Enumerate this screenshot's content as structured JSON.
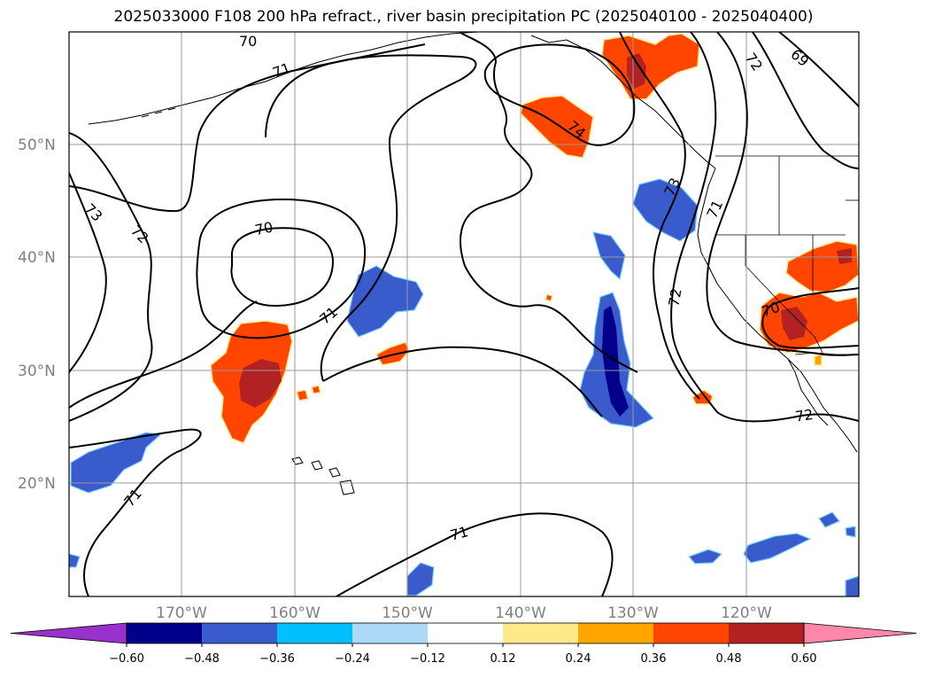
{
  "title": "2025033000 F108 200 hPa refract., river basin precipitation PC (2025040100 - 2025040400)",
  "latitude_labels": [
    "50°N",
    "40°N",
    "30°N",
    "20°N"
  ],
  "longitude_labels": [
    "170°W",
    "160°W",
    "150°W",
    "140°W",
    "130°W",
    "120°W"
  ],
  "contour_labels": [
    "70",
    "71",
    "69",
    "74",
    "73",
    "72",
    "70",
    "71",
    "73",
    "72",
    "71",
    "72",
    "70",
    "72",
    "71",
    "71"
  ],
  "colorbar": {
    "tick_labels": [
      "−0.60",
      "−0.48",
      "−0.36",
      "−0.24",
      "−0.12",
      "0.12",
      "0.24",
      "0.36",
      "0.48",
      "0.60"
    ],
    "colors": [
      "#9932cc",
      "#00008b",
      "#3a5bcc",
      "#00bfff",
      "#add8f5",
      "#ffffff",
      "#ffe98a",
      "#ffa500",
      "#ff4500",
      "#b22222",
      "#ff88aa"
    ]
  }
}
